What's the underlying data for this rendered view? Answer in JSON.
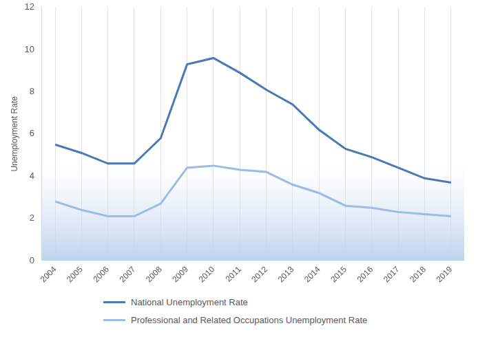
{
  "chart_data": {
    "type": "line",
    "y_label": "Unemployment Rate",
    "categories": [
      "2004",
      "2005",
      "2006",
      "2007",
      "2008",
      "2009",
      "2010",
      "2011",
      "2012",
      "2013",
      "2014",
      "2015",
      "2016",
      "2017",
      "2018",
      "2019"
    ],
    "series": [
      {
        "name": "National Unemployment Rate",
        "color": "#4a7ab5",
        "values": [
          5.5,
          5.1,
          4.6,
          4.6,
          5.8,
          9.3,
          9.6,
          8.9,
          8.1,
          7.4,
          6.2,
          5.3,
          4.9,
          4.4,
          3.9,
          3.7
        ]
      },
      {
        "name": "Professional and Related Occupations Unemployment Rate",
        "color": "#9dbbe3",
        "values": [
          2.8,
          2.4,
          2.1,
          2.1,
          2.7,
          4.4,
          4.5,
          4.3,
          4.2,
          3.6,
          3.2,
          2.6,
          2.5,
          2.3,
          2.2,
          2.1
        ]
      }
    ],
    "ylim": [
      0,
      12
    ],
    "yticks": [
      0,
      2,
      4,
      6,
      8,
      10,
      12
    ],
    "grid": true,
    "legend": "bottom"
  }
}
